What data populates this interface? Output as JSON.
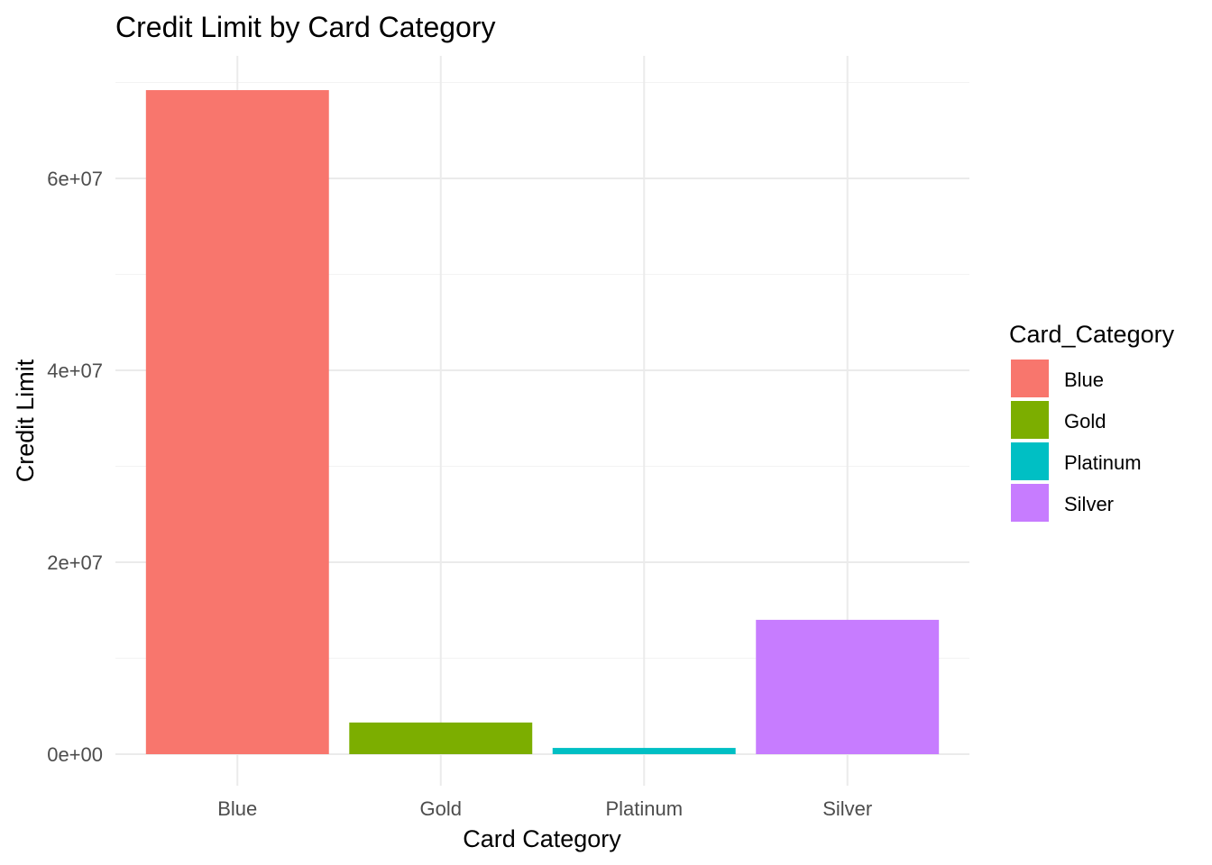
{
  "chart_data": {
    "type": "bar",
    "title": "Credit Limit by Card Category",
    "xlabel": "Card Category",
    "ylabel": "Credit Limit",
    "categories": [
      "Blue",
      "Gold",
      "Platinum",
      "Silver"
    ],
    "values": [
      69200000,
      3300000,
      650000,
      14000000
    ],
    "colors": [
      "#F8766D",
      "#7CAE00",
      "#00BFC4",
      "#C77CFF"
    ],
    "ylim": [
      0,
      72000000
    ],
    "yticks": [
      0,
      20000000,
      40000000,
      60000000
    ],
    "ytick_labels": [
      "0e+00",
      "2e+07",
      "4e+07",
      "6e+07"
    ],
    "grid": true,
    "legend": {
      "title": "Card_Category",
      "position": "right",
      "entries": [
        "Blue",
        "Gold",
        "Platinum",
        "Silver"
      ]
    }
  }
}
